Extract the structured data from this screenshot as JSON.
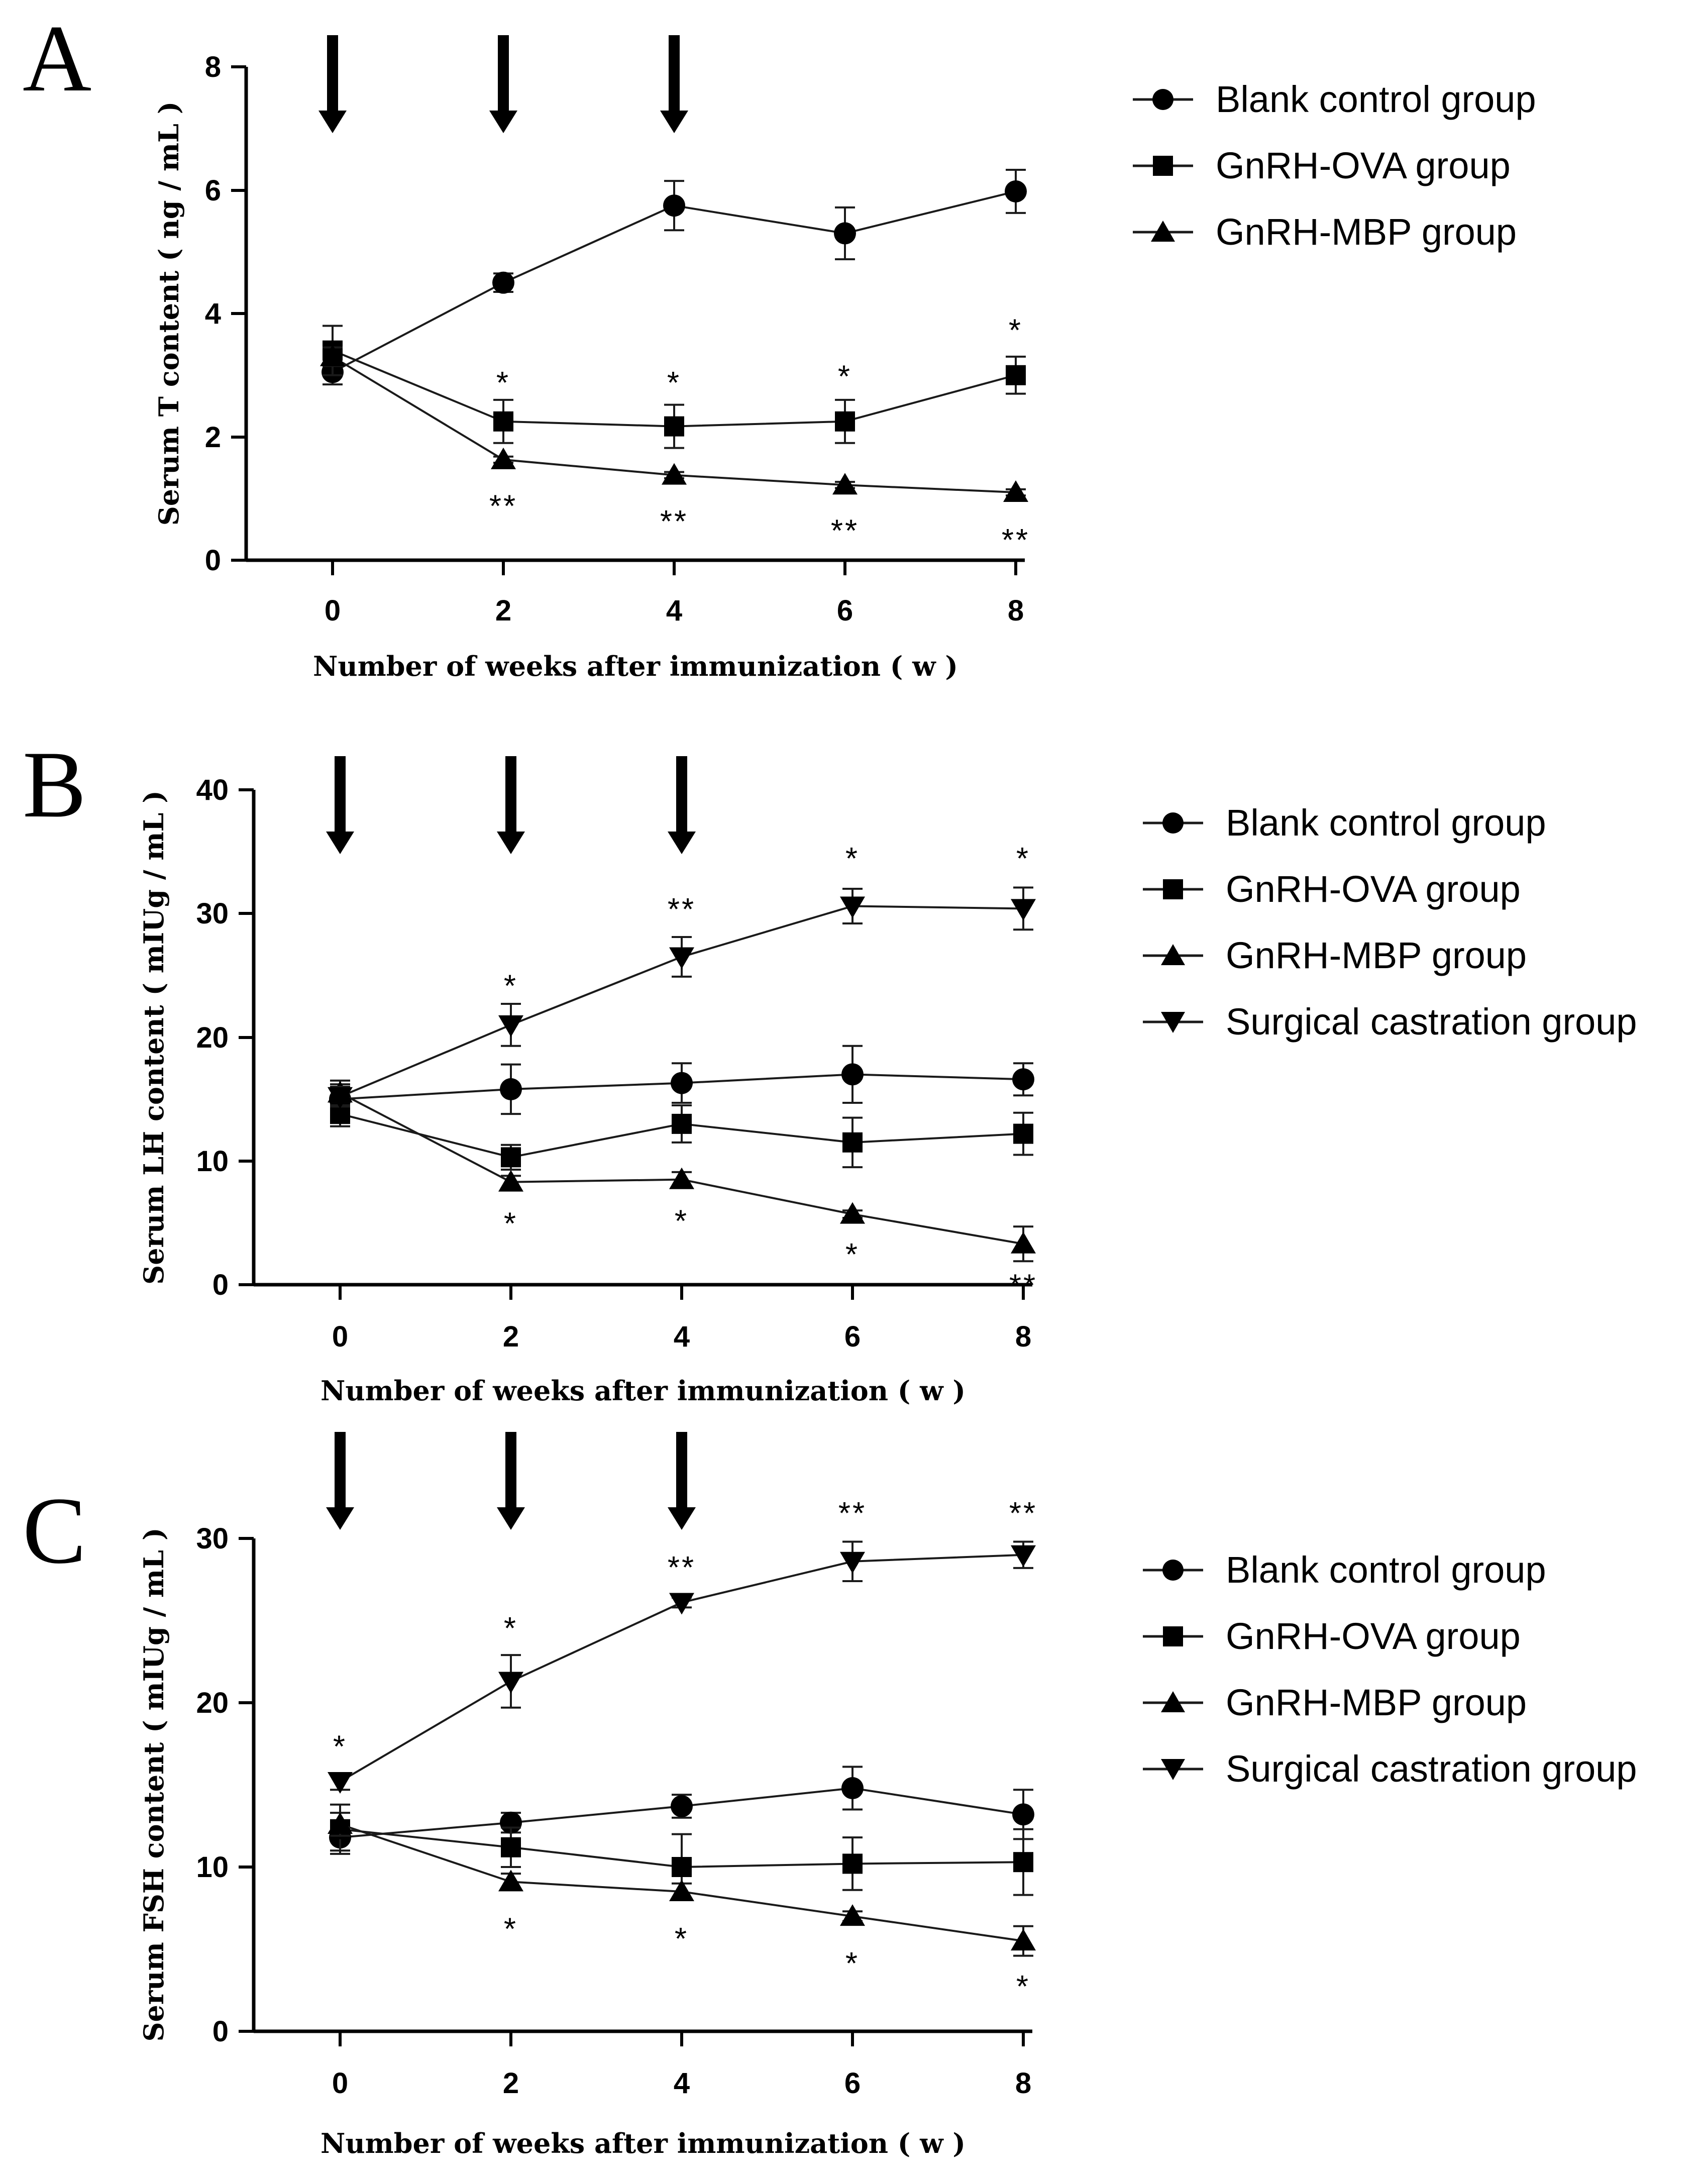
{
  "chart_data": [
    {
      "type": "line",
      "panel": "A",
      "xlabel": "Number of weeks after immunization ( w )",
      "ylabel": "Serum T content ( ng / mL )",
      "x": [
        0,
        2,
        4,
        6,
        8
      ],
      "xticks": [
        "0",
        "2",
        "4",
        "6",
        "8"
      ],
      "ylim": [
        0,
        8
      ],
      "yticks": [
        "0",
        "2",
        "4",
        "6",
        "8"
      ],
      "arrows_at_weeks": [
        0,
        2,
        4
      ],
      "series": [
        {
          "name": "Blank control group",
          "marker": "circle",
          "values": [
            3.05,
            4.5,
            5.75,
            5.3,
            5.98
          ],
          "errors": [
            0.2,
            0.15,
            0.4,
            0.42,
            0.35
          ]
        },
        {
          "name": "GnRH-OVA group",
          "marker": "square",
          "values": [
            3.4,
            2.25,
            2.17,
            2.25,
            3.0
          ],
          "errors": [
            0.4,
            0.35,
            0.35,
            0.35,
            0.3
          ]
        },
        {
          "name": "GnRH-MBP group",
          "marker": "triangle-up",
          "values": [
            3.3,
            1.63,
            1.38,
            1.22,
            1.1
          ],
          "errors": [
            0.15,
            0.05,
            0.05,
            0.05,
            0.05
          ]
        }
      ],
      "annotations": [
        {
          "x": 2,
          "y": 2.95,
          "text": "*"
        },
        {
          "x": 4,
          "y": 2.95,
          "text": "*"
        },
        {
          "x": 6,
          "y": 3.05,
          "text": "*"
        },
        {
          "x": 8,
          "y": 3.8,
          "text": "*"
        },
        {
          "x": 2,
          "y": 0.95,
          "text": "**"
        },
        {
          "x": 4,
          "y": 0.7,
          "text": "**"
        },
        {
          "x": 6,
          "y": 0.55,
          "text": "**"
        },
        {
          "x": 8,
          "y": 0.4,
          "text": "**"
        }
      ]
    },
    {
      "type": "line",
      "panel": "B",
      "xlabel": "Number of weeks after immunization ( w )",
      "ylabel": "Serum LH content ( mIUg / mL )",
      "x": [
        0,
        2,
        4,
        6,
        8
      ],
      "xticks": [
        "0",
        "2",
        "4",
        "6",
        "8"
      ],
      "ylim": [
        0,
        40
      ],
      "yticks": [
        "0",
        "10",
        "20",
        "30",
        "40"
      ],
      "arrows_at_weeks": [
        0,
        2,
        4
      ],
      "series": [
        {
          "name": "Blank control group",
          "marker": "circle",
          "values": [
            15.0,
            15.8,
            16.3,
            17.0,
            16.6
          ],
          "errors": [
            1.2,
            2.0,
            1.6,
            2.3,
            1.3
          ]
        },
        {
          "name": "GnRH-OVA group",
          "marker": "square",
          "values": [
            13.8,
            10.3,
            13.0,
            11.5,
            12.2
          ],
          "errors": [
            1.0,
            1.0,
            1.5,
            2.0,
            1.7
          ]
        },
        {
          "name": "GnRH-MBP group",
          "marker": "triangle-up",
          "values": [
            15.5,
            8.3,
            8.5,
            5.7,
            3.3
          ],
          "errors": [
            1.0,
            0.5,
            0.6,
            0.3,
            1.4
          ]
        },
        {
          "name": "Surgical castration group",
          "marker": "triangle-down",
          "values": [
            15.2,
            21.0,
            26.5,
            30.6,
            30.4
          ],
          "errors": [
            0.8,
            1.7,
            1.6,
            1.4,
            1.7
          ]
        }
      ],
      "annotations": [
        {
          "x": 2,
          "y": 24.5,
          "text": "*"
        },
        {
          "x": 4,
          "y": 30.7,
          "text": "**"
        },
        {
          "x": 6,
          "y": 34.8,
          "text": "*"
        },
        {
          "x": 8,
          "y": 34.8,
          "text": "*"
        },
        {
          "x": 2,
          "y": 5.3,
          "text": "*"
        },
        {
          "x": 4,
          "y": 5.5,
          "text": "*"
        },
        {
          "x": 6,
          "y": 2.8,
          "text": "*"
        },
        {
          "x": 8,
          "y": 0.3,
          "text": "**"
        }
      ]
    },
    {
      "type": "line",
      "panel": "C",
      "xlabel": "Number of weeks after immunization ( w )",
      "ylabel": "Serum FSH content ( mIUg / mL )",
      "x": [
        0,
        2,
        4,
        6,
        8
      ],
      "xticks": [
        "0",
        "2",
        "4",
        "6",
        "8"
      ],
      "ylim": [
        0,
        30
      ],
      "yticks": [
        "0",
        "10",
        "20",
        "30"
      ],
      "arrows_at_weeks": [
        0,
        2,
        4
      ],
      "series": [
        {
          "name": "Blank control group",
          "marker": "circle",
          "values": [
            11.8,
            12.7,
            13.7,
            14.8,
            13.2
          ],
          "errors": [
            0.8,
            0.6,
            0.7,
            1.3,
            1.5
          ]
        },
        {
          "name": "GnRH-OVA group",
          "marker": "square",
          "values": [
            12.3,
            11.2,
            10.0,
            10.2,
            10.3
          ],
          "errors": [
            1.5,
            1.2,
            2.0,
            1.6,
            2.0
          ]
        },
        {
          "name": "GnRH-MBP group",
          "marker": "triangle-up",
          "values": [
            12.6,
            9.1,
            8.5,
            7.0,
            5.5
          ],
          "errors": [
            0.7,
            0.5,
            0.5,
            0.3,
            0.9
          ]
        },
        {
          "name": "Surgical castration group",
          "marker": "triangle-down",
          "values": [
            15.2,
            21.3,
            26.1,
            28.6,
            29.0
          ],
          "errors": [
            0.5,
            1.6,
            0.3,
            1.2,
            0.8
          ]
        }
      ],
      "annotations": [
        {
          "x": 0,
          "y": 17.6,
          "text": "*"
        },
        {
          "x": 2,
          "y": 24.8,
          "text": "*"
        },
        {
          "x": 4,
          "y": 28.5,
          "text": "**"
        },
        {
          "x": 6,
          "y": 31.8,
          "text": "**"
        },
        {
          "x": 8,
          "y": 31.8,
          "text": "**"
        },
        {
          "x": 2,
          "y": 6.5,
          "text": "*"
        },
        {
          "x": 4,
          "y": 5.9,
          "text": "*"
        },
        {
          "x": 6,
          "y": 4.4,
          "text": "*"
        },
        {
          "x": 8,
          "y": 3.0,
          "text": "*"
        }
      ]
    }
  ]
}
